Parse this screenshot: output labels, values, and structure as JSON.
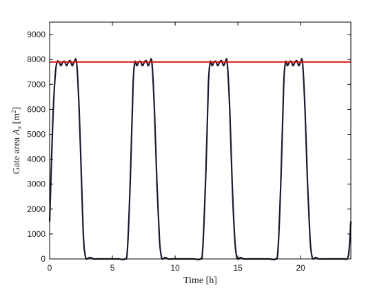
{
  "chart_data": {
    "type": "line",
    "xlabel": "Time [h]",
    "ylabel_text": "Gate area ",
    "ylabel_sym": "A",
    "ylabel_sub": "s",
    "ylabel_unit_open": " [m",
    "ylabel_unit_sup": "2",
    "ylabel_unit_close": "]",
    "xlim": [
      0,
      24
    ],
    "ylim": [
      0,
      9500
    ],
    "xticks": [
      0,
      5,
      10,
      15,
      20
    ],
    "yticks": [
      0,
      1000,
      2000,
      3000,
      4000,
      5000,
      6000,
      7000,
      8000,
      9000
    ],
    "grid": false,
    "colors": {
      "series": "#1b1b2f",
      "reference": "#e01010",
      "axes": "#000000"
    },
    "series": [
      {
        "x": [
          0,
          0.25,
          0.45,
          0.6,
          0.75,
          0.9,
          1.05,
          1.2,
          1.35,
          1.5,
          1.65,
          1.8,
          1.95,
          2.15,
          2.35,
          2.55,
          2.7,
          2.85,
          3.0,
          3.2,
          3.5,
          3.75,
          4.0,
          4.5,
          5.0,
          5.5,
          6.0,
          6.2,
          6.45,
          6.65,
          6.8,
          6.95,
          7.1,
          7.25,
          7.4,
          7.55,
          7.7,
          7.85,
          8.0,
          8.15,
          8.35,
          8.55,
          8.75,
          8.9,
          9.05,
          9.2,
          9.45,
          9.75,
          10.0,
          10.5,
          11.0,
          11.5,
          12.0,
          12.2,
          12.45,
          12.65,
          12.8,
          12.95,
          13.1,
          13.25,
          13.4,
          13.55,
          13.7,
          13.85,
          14.0,
          14.15,
          14.35,
          14.55,
          14.75,
          14.9,
          15.05,
          15.2,
          15.45,
          15.75,
          16.0,
          16.5,
          17.0,
          17.5,
          18.0,
          18.2,
          18.45,
          18.65,
          18.8,
          18.95,
          19.1,
          19.25,
          19.4,
          19.55,
          19.7,
          19.85,
          20.0,
          20.15,
          20.35,
          20.55,
          20.75,
          20.9,
          21.05,
          21.2,
          21.45,
          21.75,
          22.0,
          22.5,
          23.0,
          23.5,
          23.7,
          23.85,
          24.0
        ],
        "y": [
          1500,
          5500,
          7400,
          7900,
          7900,
          7750,
          7900,
          7920,
          7750,
          7900,
          7950,
          7750,
          7900,
          7880,
          6000,
          3000,
          800,
          100,
          0,
          60,
          0,
          0,
          0,
          0,
          0,
          0,
          0,
          400,
          3500,
          7000,
          7900,
          7750,
          7900,
          7920,
          7750,
          7900,
          7950,
          7750,
          7900,
          7880,
          6000,
          3000,
          800,
          100,
          0,
          60,
          0,
          0,
          0,
          0,
          0,
          0,
          0,
          400,
          3500,
          7000,
          7900,
          7750,
          7900,
          7920,
          7750,
          7900,
          7950,
          7750,
          7900,
          7880,
          6000,
          3000,
          800,
          100,
          0,
          60,
          0,
          0,
          0,
          0,
          0,
          0,
          0,
          400,
          3500,
          7000,
          7900,
          7750,
          7900,
          7920,
          7750,
          7900,
          7950,
          7750,
          7900,
          7880,
          6000,
          3000,
          800,
          100,
          0,
          60,
          0,
          0,
          0,
          0,
          0,
          0,
          0,
          300,
          1500
        ]
      }
    ],
    "reference_line": {
      "y": 7900
    }
  }
}
